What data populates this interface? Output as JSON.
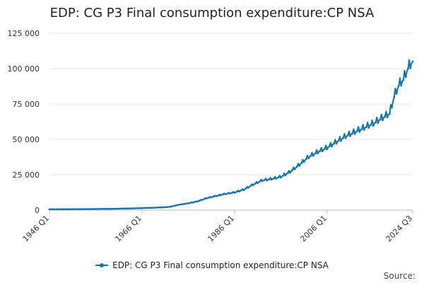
{
  "chart_data": {
    "type": "line",
    "title": "EDP: CG P3 Final consumption expenditure:CP NSA",
    "xlabel": "",
    "ylabel": "",
    "ylim": [
      0,
      125000
    ],
    "yticks": [
      0,
      25000,
      50000,
      75000,
      100000,
      125000
    ],
    "ytick_labels": [
      "0",
      "25 000",
      "50 000",
      "75 000",
      "100 000",
      "125 000"
    ],
    "x_start": 1946.0,
    "x_end": 2024.5,
    "xticks": [
      {
        "label": "1946 Q1",
        "x": 1946.0
      },
      {
        "label": "1966 Q1",
        "x": 1966.0
      },
      {
        "label": "1986 Q1",
        "x": 1986.0
      },
      {
        "label": "2006 Q1",
        "x": 2006.0
      },
      {
        "label": "2024 Q3",
        "x": 2024.5
      }
    ],
    "grid": true,
    "legend_position": "bottom",
    "series": [
      {
        "name": "EDP: CG P3 Final consumption expenditure:CP NSA",
        "color": "#0a73b5",
        "x": [
          1946,
          1950,
          1955,
          1960,
          1965,
          1970,
          1972,
          1974,
          1976,
          1978,
          1980,
          1982,
          1984,
          1986,
          1988,
          1990,
          1992,
          1994,
          1996,
          1998,
          2000,
          2002,
          2004,
          2006,
          2008,
          2010,
          2012,
          2014,
          2016,
          2018,
          2019.5,
          2020.5,
          2021.5,
          2022.5,
          2023.5,
          2024.5
        ],
        "values": [
          600,
          650,
          750,
          950,
          1300,
          1900,
          2300,
          3800,
          4800,
          6200,
          8500,
          10000,
          11500,
          12500,
          14500,
          18000,
          21000,
          22000,
          23500,
          27000,
          32000,
          37500,
          41000,
          44000,
          48000,
          52000,
          55000,
          58000,
          61000,
          65000,
          68000,
          80000,
          88000,
          92000,
          100000,
          105000
        ]
      }
    ],
    "legend": [
      "EDP: CG P3 Final consumption expenditure:CP NSA"
    ]
  },
  "source_label": "Source:"
}
